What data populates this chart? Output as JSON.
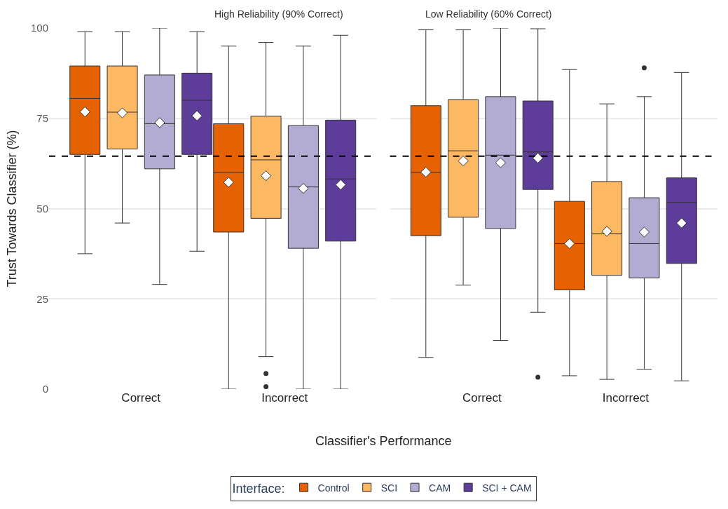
{
  "chart_data": [
    {
      "type": "box",
      "title": "High Reliability (90% Correct)",
      "xlabel": "Classifier's Performance",
      "ylabel": "Trust Towards Classifier (%)",
      "categories": [
        "Correct",
        "Incorrect"
      ],
      "ylim": [
        0,
        100
      ],
      "yticks": [
        0,
        25,
        50,
        75,
        100
      ],
      "grid": "y",
      "legend": "bottom",
      "legend_title": "Interface:",
      "marker": "diamond",
      "ref_lines": [
        {
          "axis": "y",
          "value": 64.5,
          "line_style": "dashed",
          "color": "#000000"
        }
      ],
      "series": [
        {
          "name": "Control",
          "color": "#e66101",
          "boxes": [
            {
              "low": 37.5,
              "q1": 65,
              "median": 80.5,
              "q3": 89.5,
              "high": 99,
              "mean": 76.8
            },
            {
              "low": 0,
              "q1": 43.5,
              "median": 60,
              "q3": 73.5,
              "high": 95,
              "mean": 57.3
            }
          ]
        },
        {
          "name": "SCI",
          "color": "#fdb863",
          "boxes": [
            {
              "low": 46,
              "q1": 66.5,
              "median": 76.7,
              "q3": 89.5,
              "high": 99,
              "mean": 76.5
            },
            {
              "low": 9,
              "q1": 47.3,
              "median": 63.5,
              "q3": 75.6,
              "high": 96,
              "mean": 59.1,
              "outliers": [
                4.3,
                0.7
              ]
            }
          ]
        },
        {
          "name": "CAM",
          "color": "#b2abd2",
          "boxes": [
            {
              "low": 29,
              "q1": 61,
              "median": 73.5,
              "q3": 87,
              "high": 100,
              "mean": 73.8
            },
            {
              "low": 0,
              "q1": 39,
              "median": 56,
              "q3": 73,
              "high": 95,
              "mean": 55.6
            }
          ]
        },
        {
          "name": "SCI + CAM",
          "color": "#5e3c99",
          "boxes": [
            {
              "low": 38.2,
              "q1": 65,
              "median": 80,
              "q3": 87.5,
              "high": 99,
              "mean": 75.7
            },
            {
              "low": 0,
              "q1": 41,
              "median": 58.2,
              "q3": 74.5,
              "high": 98,
              "mean": 56.6
            }
          ]
        }
      ]
    },
    {
      "type": "box",
      "title": "Low Reliability (60% Correct)",
      "categories": [
        "Correct",
        "Incorrect"
      ],
      "ylim": [
        0,
        100
      ],
      "yticks": [
        0,
        25,
        50,
        75,
        100
      ],
      "grid": "y",
      "tick_labels": "x",
      "marker": "diamond",
      "ref_lines": [
        {
          "axis": "y",
          "value": 64.5,
          "line_style": "dashed",
          "color": "#000000"
        }
      ],
      "series": [
        {
          "name": "Control",
          "color": "#e66101",
          "boxes": [
            {
              "low": 8.8,
              "q1": 42.5,
              "median": 60,
              "q3": 78.5,
              "high": 99.5,
              "mean": 60.1
            },
            {
              "low": 3.7,
              "q1": 27.5,
              "median": 40.3,
              "q3": 52,
              "high": 88.5,
              "mean": 40.3
            }
          ]
        },
        {
          "name": "SCI",
          "color": "#fdb863",
          "boxes": [
            {
              "low": 28.8,
              "q1": 47.6,
              "median": 66,
              "q3": 80.2,
              "high": 99.5,
              "mean": 63.2
            },
            {
              "low": 2.7,
              "q1": 31.5,
              "median": 43,
              "q3": 57.5,
              "high": 79,
              "mean": 43.7
            }
          ]
        },
        {
          "name": "CAM",
          "color": "#b2abd2",
          "boxes": [
            {
              "low": 13.5,
              "q1": 44.5,
              "median": 64.8,
              "q3": 81,
              "high": 100,
              "mean": 62.7
            },
            {
              "low": 5.5,
              "q1": 30.8,
              "median": 40.3,
              "q3": 53,
              "high": 81,
              "mean": 43.5,
              "outliers": [
                89
              ]
            }
          ]
        },
        {
          "name": "SCI + CAM",
          "color": "#5e3c99",
          "boxes": [
            {
              "low": 21.3,
              "q1": 55.3,
              "median": 65.7,
              "q3": 79.8,
              "high": 99.8,
              "mean": 64,
              "outliers": [
                3.3
              ]
            },
            {
              "low": 2.3,
              "q1": 34.8,
              "median": 51.7,
              "q3": 58.5,
              "high": 87.7,
              "mean": 46
            }
          ]
        }
      ]
    }
  ]
}
